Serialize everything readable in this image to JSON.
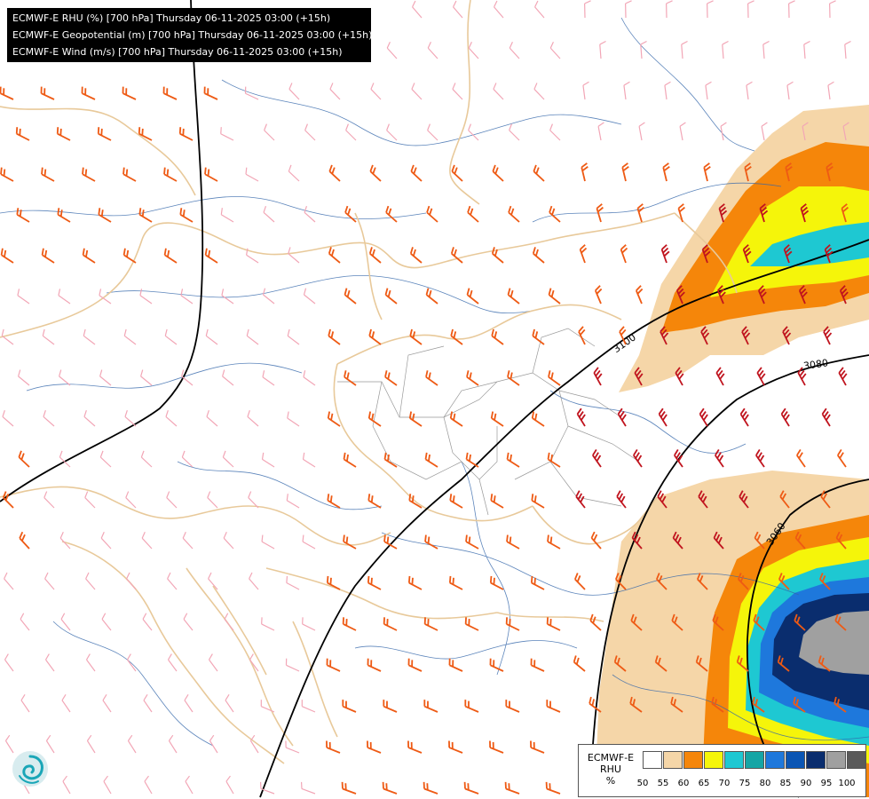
{
  "title": {
    "line1": "ECMWF-E RHU (%) [700 hPa] Thursday 06-11-2025 03:00 (+15h)",
    "line2": "ECMWF-E Geopotential (m) [700 hPa] Thursday 06-11-2025 03:00 (+15h)",
    "line3": "ECMWF-E Wind (m/s) [700 hPa] Thursday 06-11-2025 03:00 (+15h)"
  },
  "contours": {
    "label_3100": "3100",
    "label_3080": "3080",
    "label_3060": "3060"
  },
  "legend": {
    "title_line1": "ECMWF-E",
    "title_line2": "RHU",
    "title_line3": "%",
    "colors": [
      "#ffffff",
      "#f5d6a8",
      "#f5860a",
      "#f5f50a",
      "#1ec8d2",
      "#15a5a5",
      "#1e78dc",
      "#0a55b4",
      "#0a2d6e",
      "#a0a0a0",
      "#5a5a5a"
    ],
    "ticks": [
      "50",
      "55",
      "60",
      "65",
      "70",
      "75",
      "80",
      "85",
      "90",
      "95",
      "100"
    ]
  },
  "logo_icon": "ecmwf-swirl-icon"
}
